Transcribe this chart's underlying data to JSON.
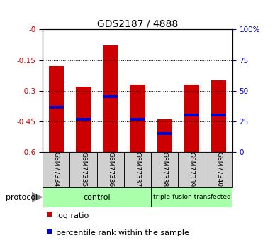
{
  "title": "GDS2187 / 4888",
  "samples": [
    "GSM77334",
    "GSM77335",
    "GSM77336",
    "GSM77337",
    "GSM77338",
    "GSM77339",
    "GSM77340"
  ],
  "log_ratio_top": [
    -0.18,
    -0.28,
    -0.08,
    -0.27,
    -0.44,
    -0.27,
    -0.25
  ],
  "log_ratio_bottom": [
    -0.6,
    -0.6,
    -0.6,
    -0.6,
    -0.6,
    -0.6,
    -0.6
  ],
  "percentile_rank": [
    -0.38,
    -0.44,
    -0.33,
    -0.44,
    -0.51,
    -0.42,
    -0.42
  ],
  "ylim_left": [
    -0.6,
    0.0
  ],
  "yticks_left": [
    0.0,
    -0.15,
    -0.3,
    -0.45,
    -0.6
  ],
  "ytick_labels_left": [
    "-0",
    "-0.15",
    "-0.3",
    "-0.45",
    "-0.6"
  ],
  "ylim_right": [
    0,
    100
  ],
  "yticks_right": [
    0,
    25,
    50,
    75,
    100
  ],
  "ytick_labels_right": [
    "0",
    "25",
    "50",
    "75",
    "100%"
  ],
  "bar_color": "#cc0000",
  "blue_color": "#0000cc",
  "bar_width": 0.55,
  "group_labels": [
    "control",
    "triple-fusion transfected"
  ],
  "group_colors": [
    "#aaffaa",
    "#aaffaa"
  ],
  "protocol_label": "protocol",
  "legend_entries": [
    "log ratio",
    "percentile rank within the sample"
  ],
  "axis_label_color_left": "#cc0000",
  "axis_label_color_right": "#0000cc",
  "gray_cell_color": "#d0d0d0"
}
